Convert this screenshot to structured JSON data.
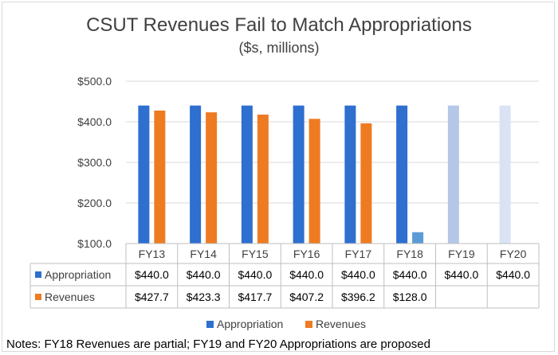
{
  "title": "CSUT Revenues Fail to Match Appropriations",
  "subtitle": "($s, millions)",
  "notes": "Notes: FY18 Revenues are partial; FY19 and FY20 Appropriations are proposed",
  "colors": {
    "appropriation": "#2e6fd0",
    "revenues": "#ee7b22",
    "fy18_revenue": "#5b9bd5",
    "fy19_appropriation": "#b4c7e7",
    "fy20_appropriation": "#dae3f3"
  },
  "chart_data": {
    "type": "bar",
    "title": "CSUT Revenues Fail to Match Appropriations",
    "subtitle": "($s, millions)",
    "categories": [
      "FY13",
      "FY14",
      "FY15",
      "FY16",
      "FY17",
      "FY18",
      "FY19",
      "FY20"
    ],
    "series": [
      {
        "name": "Appropriation",
        "values": [
          440.0,
          440.0,
          440.0,
          440.0,
          440.0,
          440.0,
          440.0,
          440.0
        ],
        "labels": [
          "$440.0",
          "$440.0",
          "$440.0",
          "$440.0",
          "$440.0",
          "$440.0",
          "$440.0",
          "$440.0"
        ]
      },
      {
        "name": "Revenues",
        "values": [
          427.7,
          423.3,
          417.7,
          407.2,
          396.2,
          128.0,
          null,
          null
        ],
        "labels": [
          "$427.7",
          "$423.3",
          "$417.7",
          "$407.2",
          "$396.2",
          "$128.0",
          "",
          ""
        ]
      }
    ],
    "ylim": [
      100,
      500
    ],
    "yticks": [
      100,
      200,
      300,
      400,
      500
    ],
    "ytick_labels": [
      "$100.0",
      "$200.0",
      "$300.0",
      "$400.0",
      "$500.0"
    ],
    "grid": true,
    "legend": "bottom",
    "data_table": true
  }
}
